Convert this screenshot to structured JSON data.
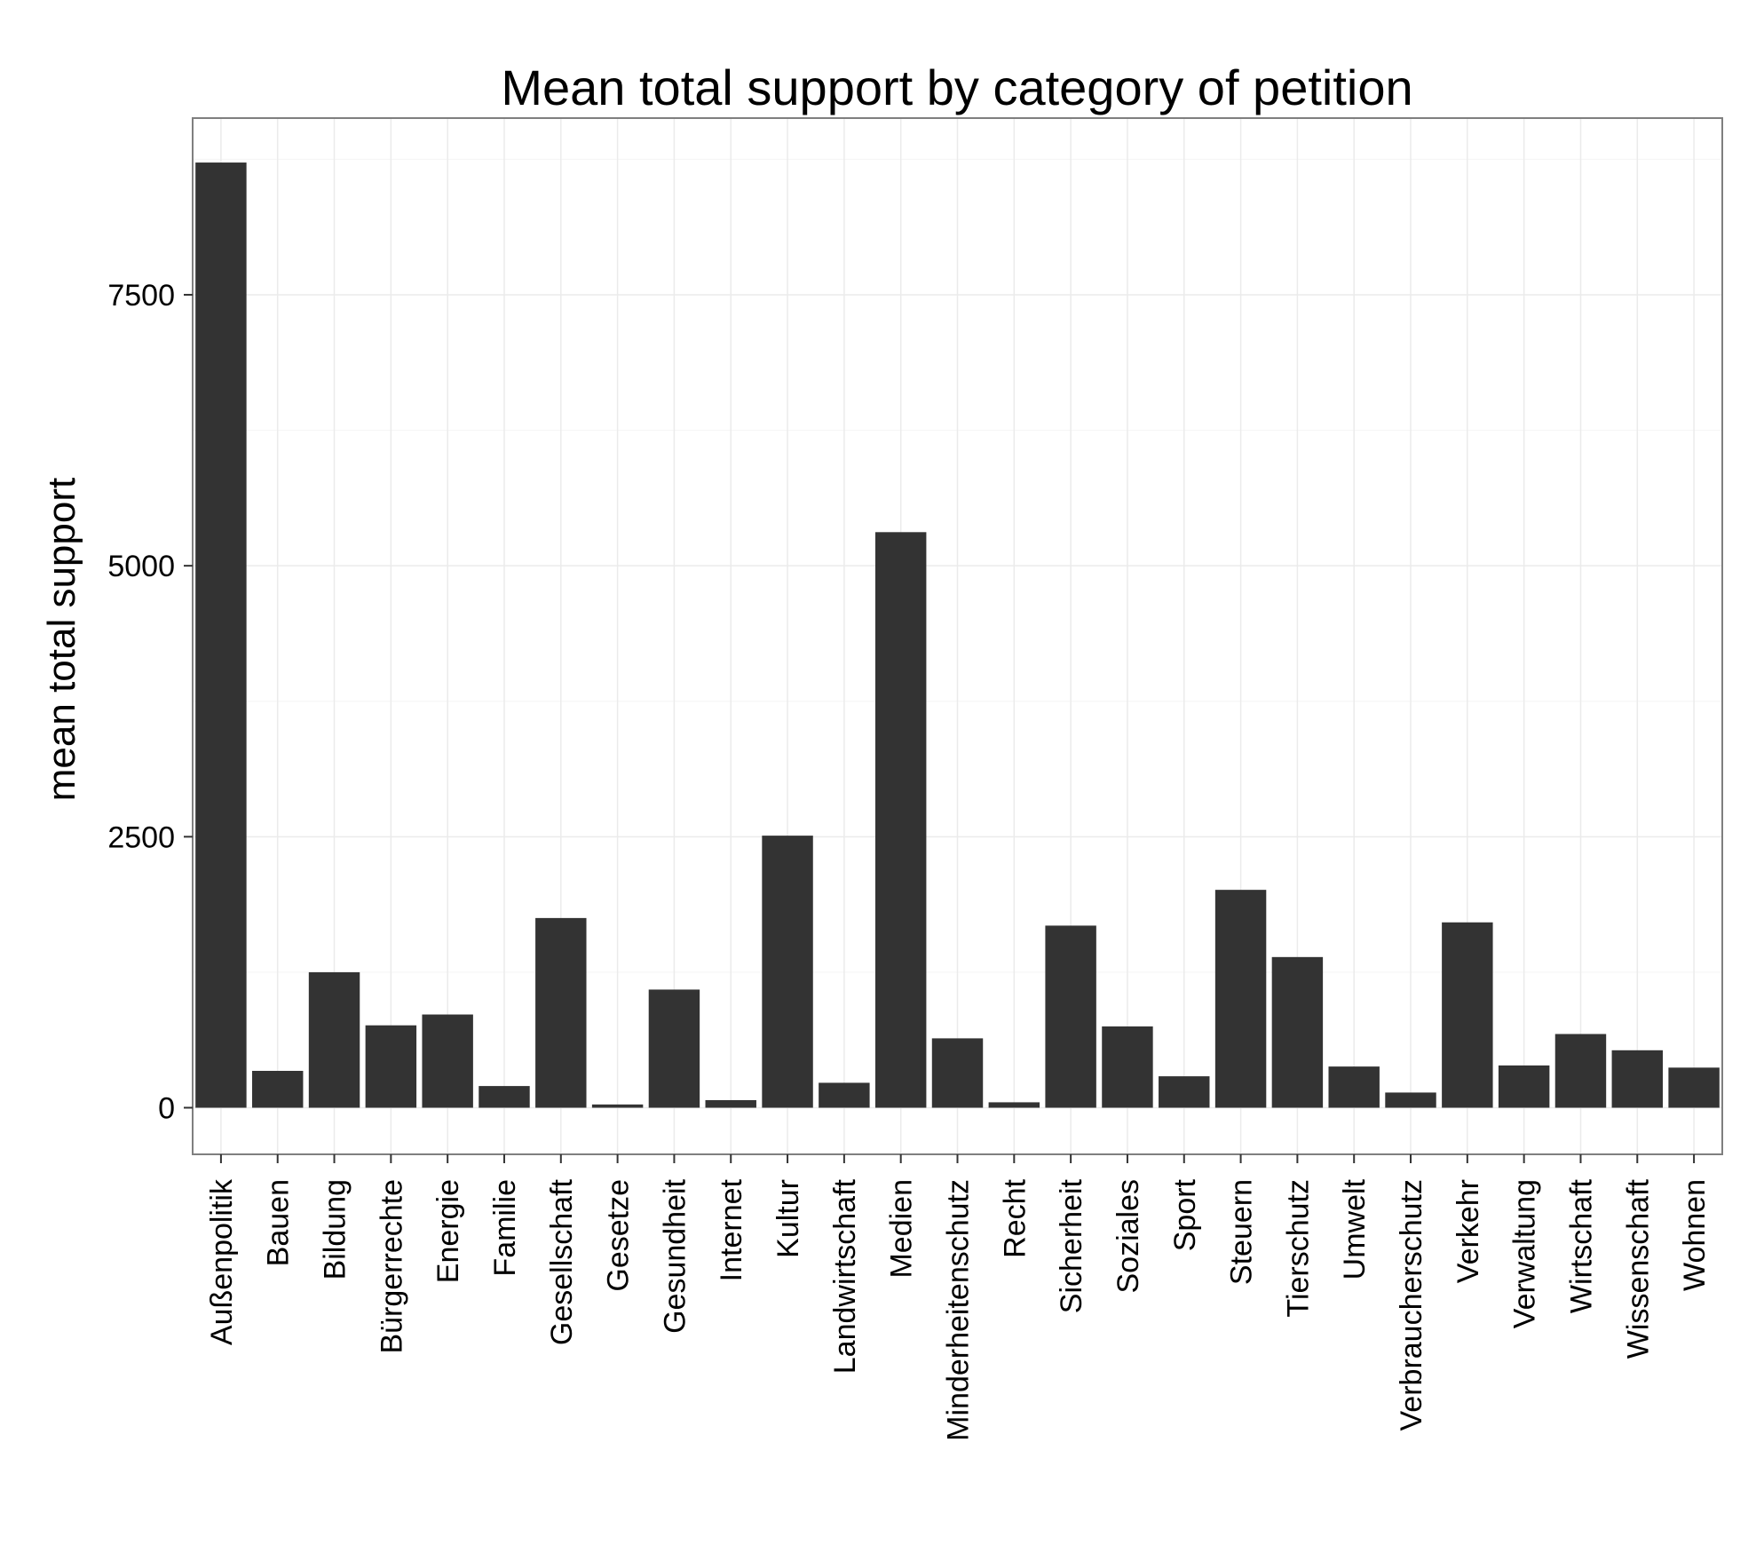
{
  "chart_data": {
    "type": "bar",
    "title": "Mean total support by category of petition",
    "xlabel": "",
    "ylabel": "mean total support",
    "ylim": [
      -430,
      9130
    ],
    "yticks": [
      0,
      2500,
      5000,
      7500
    ],
    "grid": true,
    "legend": "none",
    "colors": {
      "bar": "#333333",
      "panel_border": "#7f7f7f",
      "grid_major": "#ebebeb",
      "grid_minor": "#f5f5f5",
      "tick": "#333333"
    },
    "categories": [
      "Außenpolitik",
      "Bauen",
      "Bildung",
      "Bürgerrechte",
      "Energie",
      "Familie",
      "Gesellschaft",
      "Gesetze",
      "Gesundheit",
      "Internet",
      "Kultur",
      "Landwirtschaft",
      "Medien",
      "Minderheitenschutz",
      "Recht",
      "Sicherheit",
      "Soziales",
      "Sport",
      "Steuern",
      "Tierschutz",
      "Umwelt",
      "Verbraucherschutz",
      "Verkehr",
      "Verwaltung",
      "Wirtschaft",
      "Wissenschaft",
      "Wohnen"
    ],
    "values": [
      8720,
      340,
      1250,
      760,
      860,
      200,
      1750,
      30,
      1090,
      70,
      2510,
      230,
      5310,
      640,
      50,
      1680,
      750,
      290,
      2010,
      1390,
      380,
      140,
      1710,
      390,
      680,
      530,
      370
    ]
  }
}
